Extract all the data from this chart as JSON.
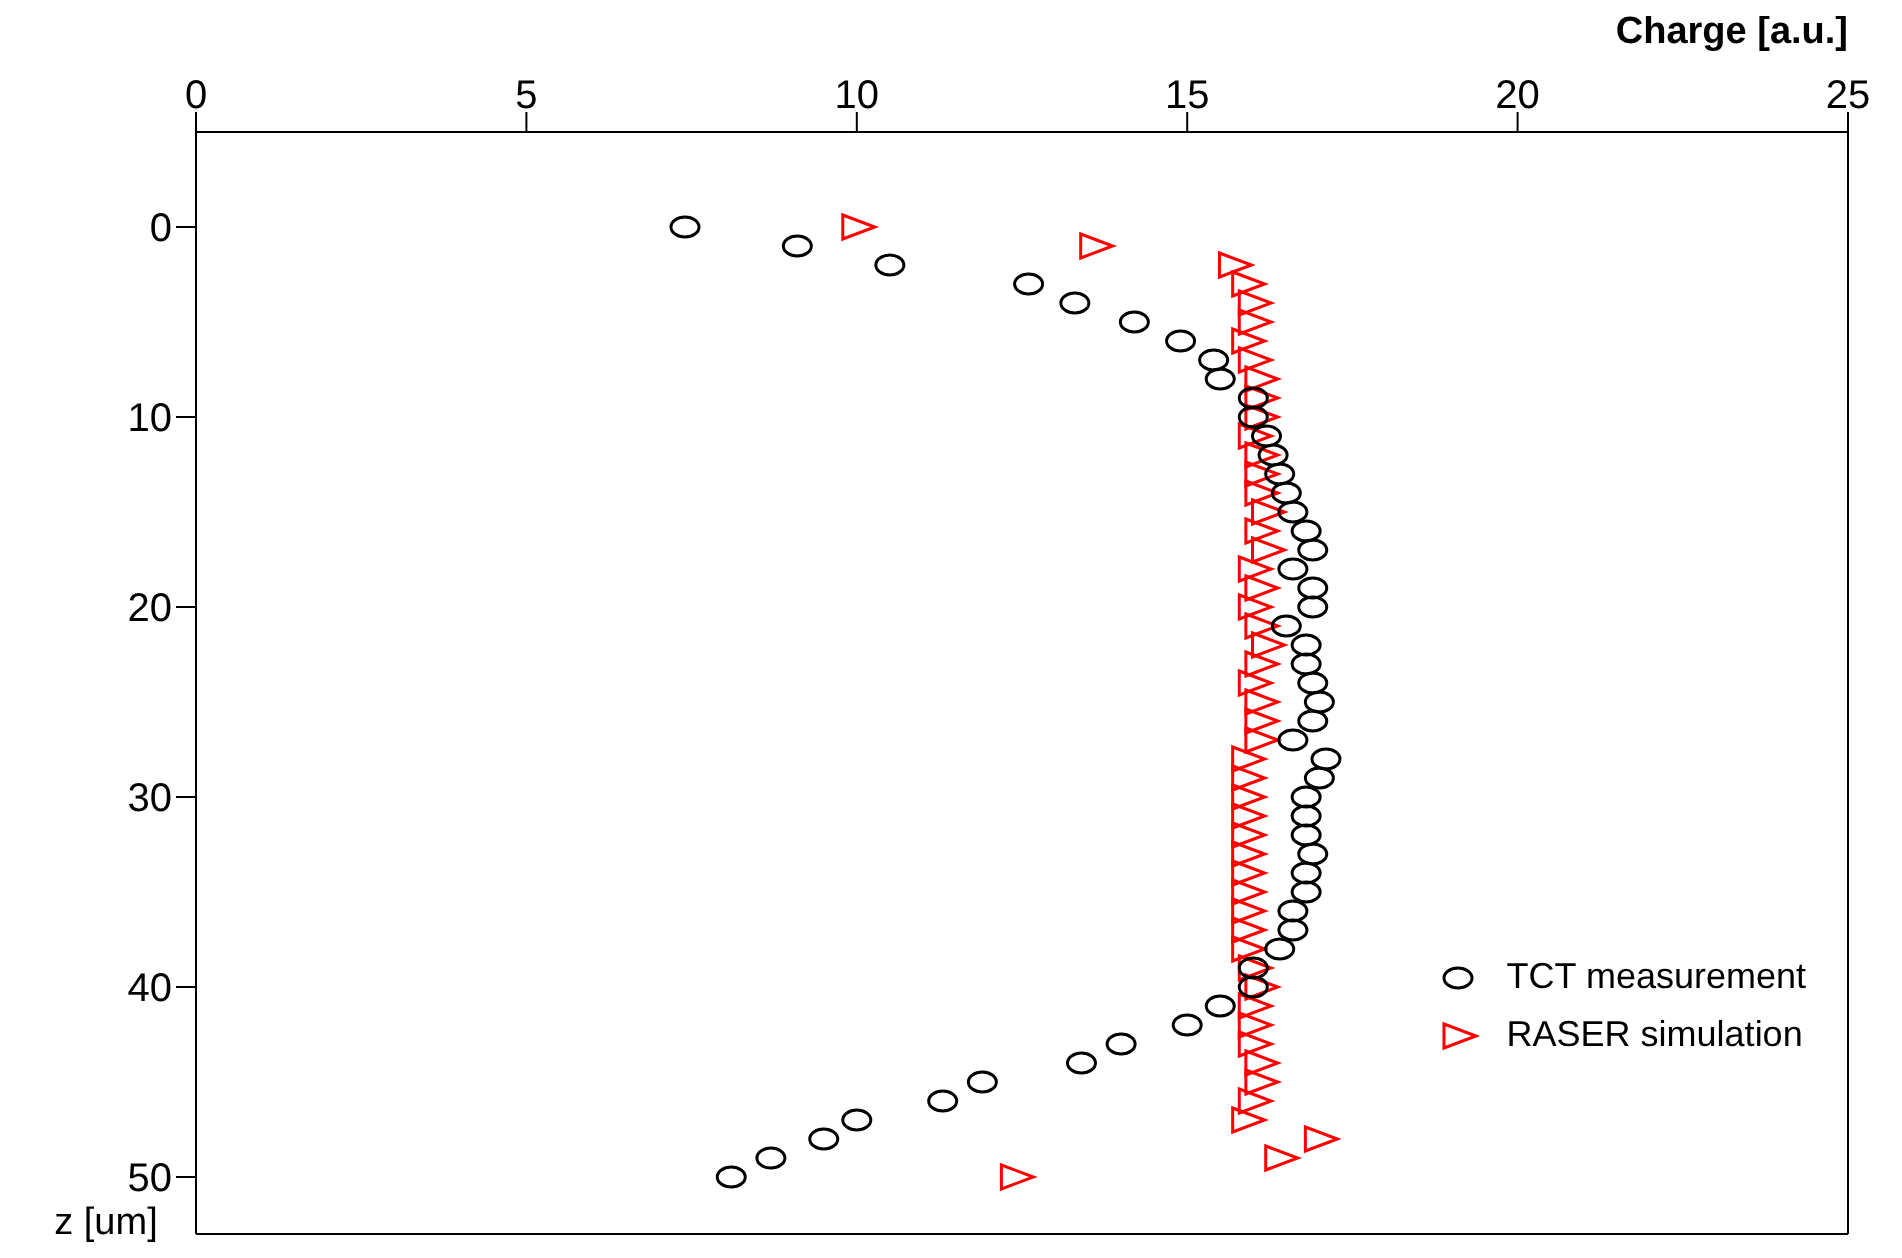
{
  "chart_data": {
    "type": "scatter",
    "xlabel": "Charge [a.u.]",
    "ylabel": "z [um]",
    "xlim": [
      0,
      25
    ],
    "xticks": [
      0,
      5,
      10,
      15,
      20,
      25
    ],
    "ylim": [
      53,
      -5
    ],
    "yticks": [
      0,
      10,
      20,
      30,
      40,
      50
    ],
    "legend": "bottom right",
    "series": [
      {
        "name": "TCT measurement",
        "color": "#000000",
        "marker": "circle",
        "x": [
          7.4,
          9.1,
          10.5,
          12.6,
          13.3,
          14.2,
          14.9,
          15.4,
          15.5,
          16.0,
          16.0,
          16.2,
          16.3,
          16.4,
          16.5,
          16.6,
          16.8,
          16.9,
          16.6,
          16.9,
          16.9,
          16.5,
          16.8,
          16.8,
          16.9,
          17.0,
          16.9,
          16.6,
          17.1,
          17.0,
          16.8,
          16.8,
          16.8,
          16.9,
          16.8,
          16.8,
          16.6,
          16.6,
          16.4,
          16.0,
          16.0,
          15.5,
          15.0,
          14.0,
          13.4,
          11.9,
          11.3,
          10.0,
          9.5,
          8.7,
          8.1
        ],
        "values": [
          0,
          1,
          2,
          3,
          4,
          5,
          6,
          7,
          8,
          9,
          10,
          11,
          12,
          13,
          14,
          15,
          16,
          17,
          18,
          19,
          20,
          21,
          22,
          23,
          24,
          25,
          26,
          27,
          28,
          29,
          30,
          31,
          32,
          33,
          34,
          35,
          36,
          37,
          38,
          39,
          40,
          41,
          42,
          43,
          44,
          45,
          46,
          47,
          48,
          49,
          50
        ]
      },
      {
        "name": "RASER simulation",
        "color": "#ff0000",
        "marker": "triangle",
        "x": [
          10.0,
          13.6,
          15.7,
          15.9,
          16.0,
          16.0,
          15.9,
          16.0,
          16.1,
          16.1,
          16.1,
          16.0,
          16.1,
          16.1,
          16.1,
          16.2,
          16.1,
          16.2,
          16.0,
          16.1,
          16.0,
          16.1,
          16.2,
          16.1,
          16.0,
          16.1,
          16.1,
          16.1,
          15.9,
          15.9,
          15.9,
          15.9,
          15.9,
          15.9,
          15.9,
          15.9,
          15.9,
          15.9,
          15.9,
          16.0,
          16.1,
          16.0,
          16.0,
          16.0,
          16.1,
          16.1,
          16.0,
          15.9,
          17.0,
          16.4,
          12.4
        ],
        "values": [
          0,
          1,
          2,
          3,
          4,
          5,
          6,
          7,
          8,
          9,
          10,
          11,
          12,
          13,
          14,
          15,
          16,
          17,
          18,
          19,
          20,
          21,
          22,
          23,
          24,
          25,
          26,
          27,
          28,
          29,
          30,
          31,
          32,
          33,
          34,
          35,
          36,
          37,
          38,
          39,
          40,
          41,
          42,
          43,
          44,
          45,
          46,
          47,
          48,
          49,
          50
        ]
      }
    ]
  }
}
